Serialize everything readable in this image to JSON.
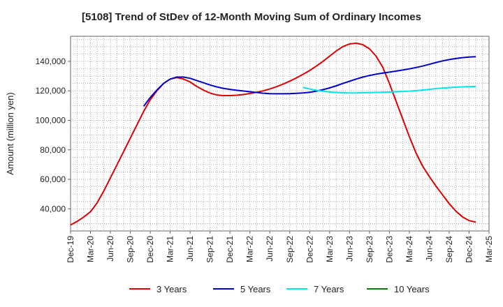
{
  "chart_data": {
    "type": "line",
    "title": "[5108]  Trend of StDev of 12-Month Moving Sum of Ordinary Incomes",
    "xlabel": "",
    "ylabel": "Amount (million yen)",
    "ylim": [
      25000,
      157000
    ],
    "y_ticks": [
      40000,
      60000,
      80000,
      100000,
      120000,
      140000
    ],
    "y_tick_labels": [
      "40,000",
      "60,000",
      "80,000",
      "100,000",
      "120,000",
      "140,000"
    ],
    "x_range": [
      "2019-12",
      "2025-03"
    ],
    "x_ticks": [
      "2019-12",
      "2020-03",
      "2020-06",
      "2020-09",
      "2020-12",
      "2021-03",
      "2021-06",
      "2021-09",
      "2021-12",
      "2022-03",
      "2022-06",
      "2022-09",
      "2022-12",
      "2023-03",
      "2023-06",
      "2023-09",
      "2023-12",
      "2024-03",
      "2024-06",
      "2024-09",
      "2024-12",
      "2025-03"
    ],
    "x_tick_labels": [
      "Dec-19",
      "Mar-20",
      "Jun-20",
      "Sep-20",
      "Dec-20",
      "Mar-21",
      "Jun-21",
      "Sep-21",
      "Dec-21",
      "Mar-22",
      "Jun-22",
      "Sep-22",
      "Dec-22",
      "Mar-23",
      "Jun-23",
      "Sep-23",
      "Dec-23",
      "Mar-24",
      "Jun-24",
      "Sep-24",
      "Dec-24",
      "Mar-25"
    ],
    "grid": true,
    "legend_position": "bottom",
    "series": [
      {
        "name": "3 Years",
        "color": "#dd0000",
        "points": [
          [
            "2019-12",
            29000
          ],
          [
            "2020-01",
            31500
          ],
          [
            "2020-02",
            34500
          ],
          [
            "2020-03",
            38000
          ],
          [
            "2020-04",
            44000
          ],
          [
            "2020-05",
            52000
          ],
          [
            "2020-06",
            61000
          ],
          [
            "2020-07",
            70000
          ],
          [
            "2020-08",
            79000
          ],
          [
            "2020-09",
            88000
          ],
          [
            "2020-10",
            97000
          ],
          [
            "2020-11",
            106000
          ],
          [
            "2020-12",
            114000
          ],
          [
            "2021-01",
            120000
          ],
          [
            "2021-02",
            125000
          ],
          [
            "2021-03",
            128000
          ],
          [
            "2021-04",
            129000
          ],
          [
            "2021-05",
            128000
          ],
          [
            "2021-06",
            126000
          ],
          [
            "2021-07",
            123000
          ],
          [
            "2021-08",
            120500
          ],
          [
            "2021-09",
            118500
          ],
          [
            "2021-10",
            117200
          ],
          [
            "2021-11",
            116800
          ],
          [
            "2021-12",
            116800
          ],
          [
            "2022-01",
            117000
          ],
          [
            "2022-02",
            117500
          ],
          [
            "2022-03",
            118200
          ],
          [
            "2022-04",
            119000
          ],
          [
            "2022-05",
            120000
          ],
          [
            "2022-06",
            121300
          ],
          [
            "2022-07",
            122800
          ],
          [
            "2022-08",
            124600
          ],
          [
            "2022-09",
            126600
          ],
          [
            "2022-10",
            128800
          ],
          [
            "2022-11",
            131200
          ],
          [
            "2022-12",
            133800
          ],
          [
            "2023-01",
            136800
          ],
          [
            "2023-02",
            140000
          ],
          [
            "2023-03",
            143500
          ],
          [
            "2023-04",
            147000
          ],
          [
            "2023-05",
            150000
          ],
          [
            "2023-06",
            151800
          ],
          [
            "2023-07",
            152300
          ],
          [
            "2023-08",
            151300
          ],
          [
            "2023-09",
            148500
          ],
          [
            "2023-10",
            143500
          ],
          [
            "2023-11",
            136000
          ],
          [
            "2023-12",
            125000
          ],
          [
            "2024-01",
            113000
          ],
          [
            "2024-02",
            101000
          ],
          [
            "2024-03",
            89000
          ],
          [
            "2024-04",
            78000
          ],
          [
            "2024-05",
            69000
          ],
          [
            "2024-06",
            62000
          ],
          [
            "2024-07",
            55500
          ],
          [
            "2024-08",
            49500
          ],
          [
            "2024-09",
            43500
          ],
          [
            "2024-10",
            38500
          ],
          [
            "2024-11",
            34500
          ],
          [
            "2024-12",
            32000
          ],
          [
            "2025-01",
            31000
          ]
        ]
      },
      {
        "name": "5 Years",
        "color": "#0000cc",
        "points": [
          [
            "2020-11",
            109500
          ],
          [
            "2020-12",
            115500
          ],
          [
            "2021-01",
            120500
          ],
          [
            "2021-02",
            125000
          ],
          [
            "2021-03",
            128000
          ],
          [
            "2021-04",
            129300
          ],
          [
            "2021-05",
            129300
          ],
          [
            "2021-06",
            128500
          ],
          [
            "2021-07",
            127000
          ],
          [
            "2021-08",
            125500
          ],
          [
            "2021-09",
            124000
          ],
          [
            "2021-10",
            122700
          ],
          [
            "2021-11",
            121700
          ],
          [
            "2021-12",
            121000
          ],
          [
            "2022-01",
            120400
          ],
          [
            "2022-02",
            119900
          ],
          [
            "2022-03",
            119400
          ],
          [
            "2022-04",
            118900
          ],
          [
            "2022-05",
            118400
          ],
          [
            "2022-06",
            118100
          ],
          [
            "2022-07",
            118000
          ],
          [
            "2022-08",
            118000
          ],
          [
            "2022-09",
            118100
          ],
          [
            "2022-10",
            118300
          ],
          [
            "2022-11",
            118600
          ],
          [
            "2022-12",
            119000
          ],
          [
            "2023-01",
            119800
          ],
          [
            "2023-02",
            120800
          ],
          [
            "2023-03",
            122000
          ],
          [
            "2023-04",
            123400
          ],
          [
            "2023-05",
            125000
          ],
          [
            "2023-06",
            126500
          ],
          [
            "2023-07",
            128000
          ],
          [
            "2023-08",
            129300
          ],
          [
            "2023-09",
            130400
          ],
          [
            "2023-10",
            131300
          ],
          [
            "2023-11",
            132000
          ],
          [
            "2023-12",
            132700
          ],
          [
            "2024-01",
            133400
          ],
          [
            "2024-02",
            134100
          ],
          [
            "2024-03",
            134900
          ],
          [
            "2024-04",
            135800
          ],
          [
            "2024-05",
            136800
          ],
          [
            "2024-06",
            138000
          ],
          [
            "2024-07",
            139200
          ],
          [
            "2024-08",
            140300
          ],
          [
            "2024-09",
            141200
          ],
          [
            "2024-10",
            141900
          ],
          [
            "2024-11",
            142500
          ],
          [
            "2024-12",
            142900
          ],
          [
            "2025-01",
            143200
          ]
        ]
      },
      {
        "name": "7 Years",
        "color": "#00e5e5",
        "points": [
          [
            "2022-11",
            122300
          ],
          [
            "2022-12",
            121300
          ],
          [
            "2023-01",
            120400
          ],
          [
            "2023-02",
            119700
          ],
          [
            "2023-03",
            119200
          ],
          [
            "2023-04",
            118900
          ],
          [
            "2023-05",
            118700
          ],
          [
            "2023-06",
            118600
          ],
          [
            "2023-07",
            118600
          ],
          [
            "2023-08",
            118700
          ],
          [
            "2023-09",
            118800
          ],
          [
            "2023-10",
            118900
          ],
          [
            "2023-11",
            119000
          ],
          [
            "2023-12",
            119200
          ],
          [
            "2024-01",
            119400
          ],
          [
            "2024-02",
            119600
          ],
          [
            "2024-03",
            119800
          ],
          [
            "2024-04",
            120100
          ],
          [
            "2024-05",
            120500
          ],
          [
            "2024-06",
            121000
          ],
          [
            "2024-07",
            121500
          ],
          [
            "2024-08",
            121900
          ],
          [
            "2024-09",
            122200
          ],
          [
            "2024-10",
            122500
          ],
          [
            "2024-11",
            122700
          ],
          [
            "2024-12",
            122800
          ],
          [
            "2025-01",
            123000
          ]
        ]
      },
      {
        "name": "10 Years",
        "color": "#008000",
        "points": []
      }
    ]
  }
}
